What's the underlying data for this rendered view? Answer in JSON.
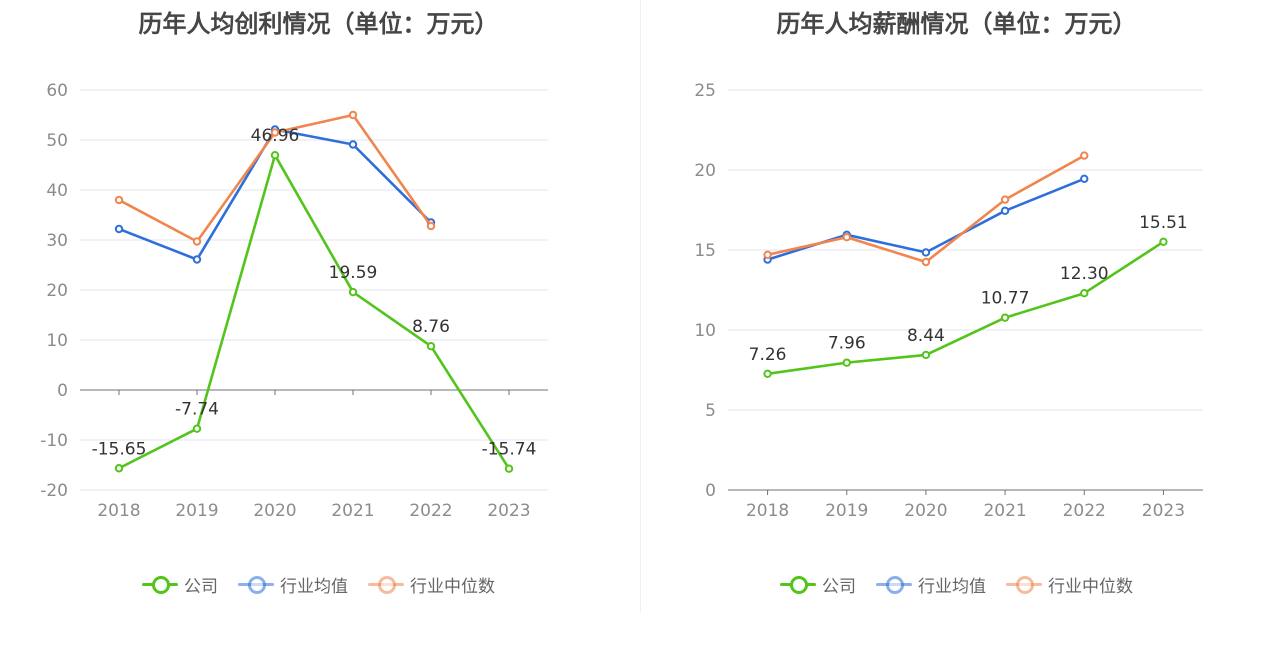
{
  "colors": {
    "company": "#52c41a",
    "industry_avg": "#2f6fdc",
    "industry_median": "#f0854e"
  },
  "legend": {
    "company": "公司",
    "industry_avg": "行业均值",
    "industry_median": "行业中位数"
  },
  "chart_data": [
    {
      "type": "line",
      "title": "历年人均创利情况（单位：万元）",
      "categories": [
        "2018",
        "2019",
        "2020",
        "2021",
        "2022",
        "2023"
      ],
      "ylim": [
        -20,
        60
      ],
      "yticks": [
        "60",
        "50",
        "40",
        "30",
        "20",
        "10",
        "0",
        "-10",
        "-20"
      ],
      "grid": true,
      "legend_position": "bottom",
      "series": [
        {
          "name": "公司",
          "key": "company",
          "values": [
            -15.65,
            -7.74,
            46.96,
            19.59,
            8.76,
            -15.74
          ],
          "labels": [
            "-15.65",
            "-7.74",
            "46.96",
            "19.59",
            "8.76",
            "-15.74"
          ]
        },
        {
          "name": "行业均值",
          "key": "industry_avg",
          "values": [
            32.2,
            26.1,
            52.1,
            49.1,
            33.5,
            null
          ]
        },
        {
          "name": "行业中位数",
          "key": "industry_median",
          "values": [
            38.0,
            29.7,
            51.5,
            55.0,
            32.8,
            null
          ]
        }
      ]
    },
    {
      "type": "line",
      "title": "历年人均薪酬情况（单位：万元）",
      "categories": [
        "2018",
        "2019",
        "2020",
        "2021",
        "2022",
        "2023"
      ],
      "ylim": [
        0,
        25
      ],
      "yticks": [
        "25",
        "20",
        "15",
        "10",
        "5",
        "0"
      ],
      "grid": true,
      "legend_position": "bottom",
      "series": [
        {
          "name": "公司",
          "key": "company",
          "values": [
            7.26,
            7.96,
            8.44,
            10.77,
            12.3,
            15.51
          ],
          "labels": [
            "7.26",
            "7.96",
            "8.44",
            "10.77",
            "12.30",
            "15.51"
          ]
        },
        {
          "name": "行业均值",
          "key": "industry_avg",
          "values": [
            14.4,
            15.95,
            14.85,
            17.45,
            19.45,
            null
          ]
        },
        {
          "name": "行业中位数",
          "key": "industry_median",
          "values": [
            14.7,
            15.8,
            14.25,
            18.15,
            20.9,
            null
          ]
        }
      ]
    }
  ]
}
